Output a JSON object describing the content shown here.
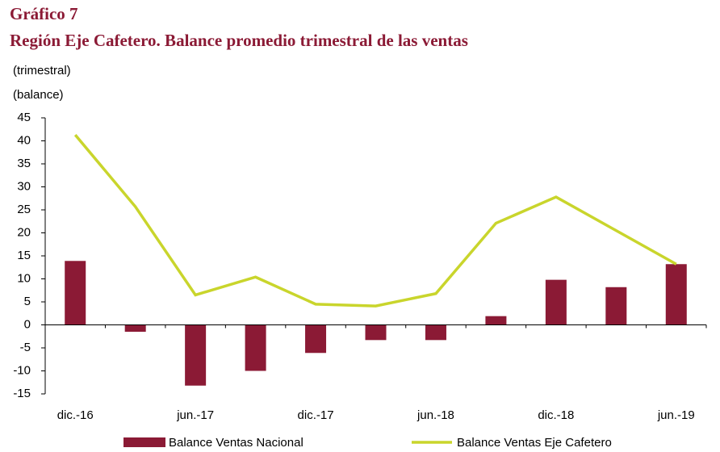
{
  "chart_data": {
    "type": "bar_line",
    "title": "Gráfico 7",
    "subtitle": "Región Eje Cafetero. Balance promedio trimestral de las ventas",
    "note": "(trimestral)",
    "y_label": "(balance)",
    "categories": [
      "dic.-16",
      null,
      "jun.-17",
      null,
      "dic.-17",
      null,
      "jun.-18",
      null,
      "dic.-18",
      null,
      "jun.-19"
    ],
    "series": [
      {
        "name": "Balance Ventas Nacional",
        "type": "bar",
        "color": "#8b1a35",
        "values": [
          13.9,
          -1.5,
          -13.2,
          -10,
          -6.1,
          -3.3,
          -3.3,
          1.9,
          9.8,
          8.2,
          13.2
        ]
      },
      {
        "name": "Balance Ventas Eje Cafetero",
        "type": "line",
        "color": "#c9d52c",
        "values": [
          41.3,
          25.7,
          6.5,
          10.4,
          4.5,
          4.1,
          6.8,
          22.1,
          27.8,
          20.5,
          13.2
        ]
      }
    ],
    "ylim": [
      -15,
      45
    ],
    "yticks": [
      -15,
      -10,
      -5,
      0,
      5,
      10,
      15,
      20,
      25,
      30,
      35,
      40,
      45
    ]
  }
}
